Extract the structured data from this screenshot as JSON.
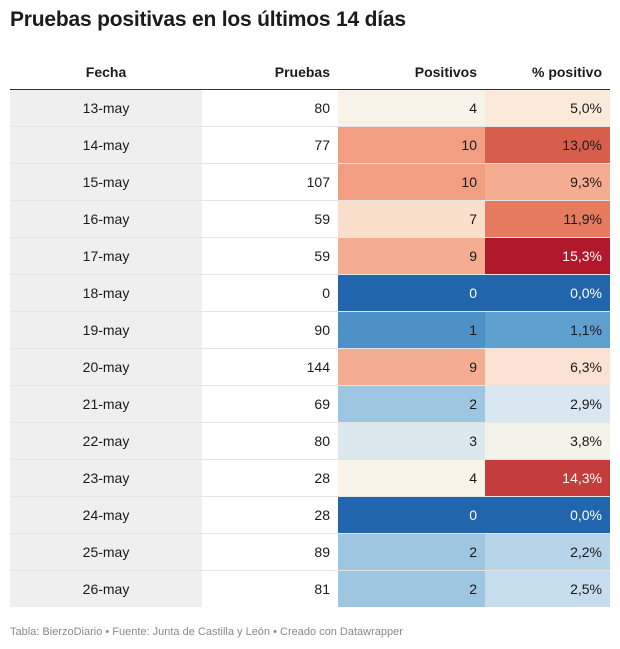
{
  "title": "Pruebas positivas en los últimos 14 días",
  "footer": "Tabla: BierzoDiario • Fuente: Junta de Castilla y León • Creado con Datawrapper",
  "chart_data": {
    "type": "table",
    "columns": [
      "Fecha",
      "Pruebas",
      "Positivos",
      "% positivo"
    ],
    "rows": [
      {
        "fecha": "13-may",
        "pruebas": "80",
        "positivos": "4",
        "pct": "5,0%",
        "pos_color": "#f7f3e8",
        "pct_color": "#fbeada"
      },
      {
        "fecha": "14-may",
        "pruebas": "77",
        "positivos": "10",
        "pct": "13,0%",
        "pos_color": "#f29e82",
        "pct_color": "#d85e4c"
      },
      {
        "fecha": "15-may",
        "pruebas": "107",
        "positivos": "10",
        "pct": "9,3%",
        "pos_color": "#f29e82",
        "pct_color": "#f5ad91"
      },
      {
        "fecha": "16-may",
        "pruebas": "59",
        "positivos": "7",
        "pct": "11,9%",
        "pos_color": "#fbdfcd",
        "pct_color": "#e67b5f"
      },
      {
        "fecha": "17-may",
        "pruebas": "59",
        "positivos": "9",
        "pct": "15,3%",
        "pos_color": "#f5ad91",
        "pct_color": "#b2182b"
      },
      {
        "fecha": "18-may",
        "pruebas": "0",
        "positivos": "0",
        "pct": "0,0%",
        "pos_color": "#2166ac",
        "pct_color": "#2166ac"
      },
      {
        "fecha": "19-may",
        "pruebas": "90",
        "positivos": "1",
        "pct": "1,1%",
        "pos_color": "#4d91c6",
        "pct_color": "#5fa0cf"
      },
      {
        "fecha": "20-may",
        "pruebas": "144",
        "positivos": "9",
        "pct": "6,3%",
        "pos_color": "#f5ad91",
        "pct_color": "#fbe2d2"
      },
      {
        "fecha": "21-may",
        "pruebas": "69",
        "positivos": "2",
        "pct": "2,9%",
        "pos_color": "#9fc6e0",
        "pct_color": "#d9e7f0"
      },
      {
        "fecha": "22-may",
        "pruebas": "80",
        "positivos": "3",
        "pct": "3,8%",
        "pos_color": "#dbe9ef",
        "pct_color": "#f4f3e9"
      },
      {
        "fecha": "23-may",
        "pruebas": "28",
        "positivos": "4",
        "pct": "14,3%",
        "pos_color": "#f7f3e8",
        "pct_color": "#c43c3c"
      },
      {
        "fecha": "24-may",
        "pruebas": "28",
        "positivos": "0",
        "pct": "0,0%",
        "pos_color": "#2166ac",
        "pct_color": "#2166ac"
      },
      {
        "fecha": "25-may",
        "pruebas": "89",
        "positivos": "2",
        "pct": "2,2%",
        "pos_color": "#9fc6e0",
        "pct_color": "#b7d4e8"
      },
      {
        "fecha": "26-may",
        "pruebas": "81",
        "positivos": "2",
        "pct": "2,5%",
        "pos_color": "#9fc6e0",
        "pct_color": "#c6dded"
      }
    ]
  }
}
